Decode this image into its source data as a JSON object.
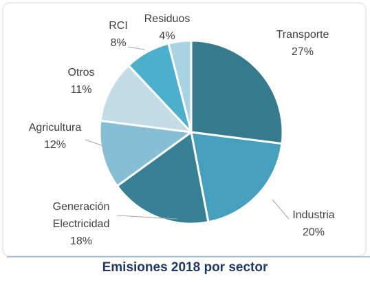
{
  "chart_data": {
    "type": "pie",
    "title": "Emisiones 2018 por sector",
    "categories": [
      "Transporte",
      "Industria",
      "Generación Electricidad",
      "Agricultura",
      "Otros",
      "RCI",
      "Residuos"
    ],
    "values": [
      27,
      20,
      18,
      12,
      11,
      8,
      4
    ],
    "value_labels": [
      "27%",
      "20%",
      "18%",
      "12%",
      "11%",
      "8%",
      "4%"
    ],
    "colors": [
      "#367b8d",
      "#46a0bd",
      "#388094",
      "#86bfd3",
      "#c4dce6",
      "#4cafcb",
      "#a9d3e2"
    ]
  }
}
